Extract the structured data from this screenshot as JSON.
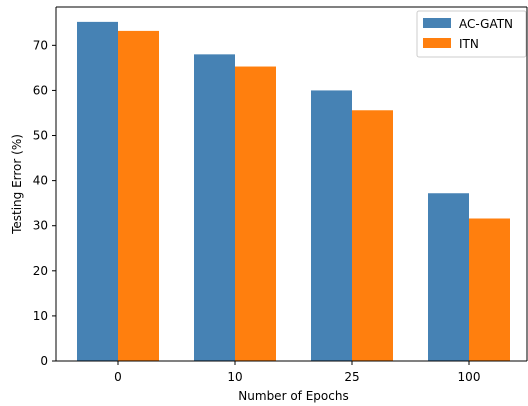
{
  "chart_data": {
    "type": "bar",
    "categories": [
      "0",
      "10",
      "25",
      "100"
    ],
    "series": [
      {
        "name": "AC-GATN",
        "color": "#4682b4",
        "values": [
          75.2,
          68.0,
          60.0,
          37.2
        ]
      },
      {
        "name": "ITN",
        "color": "#ff7f0e",
        "values": [
          73.2,
          65.3,
          55.6,
          31.6
        ]
      }
    ],
    "xlabel": "Number of Epochs",
    "ylabel": "Testing Error (%)",
    "ylim": [
      0,
      78.5
    ],
    "yticks": [
      "0",
      "10",
      "20",
      "30",
      "40",
      "50",
      "60",
      "70"
    ],
    "grid": false,
    "legend_position": "top-right"
  }
}
